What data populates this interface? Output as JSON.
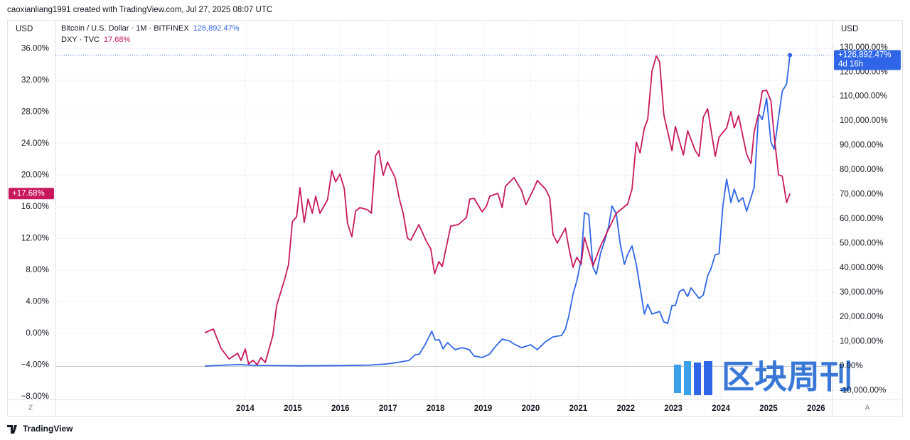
{
  "header": "caoxianliang1991 created with TradingView.com, Jul 27, 2025 08:07 UTC",
  "footer": "TradingView",
  "watermark": "区块周刊",
  "chart_data": {
    "type": "line",
    "currency_left": "USD",
    "currency_right": "USD",
    "left_corner": "Z",
    "right_corner": "A",
    "xlim": [
      2010.01,
      2026.33
    ],
    "xticks": [
      2014,
      2015,
      2016,
      2017,
      2018,
      2019,
      2020,
      2021,
      2022,
      2023,
      2024,
      2025,
      2026
    ],
    "ylim": [
      -8.36,
      39.28
    ],
    "yticks": [
      {
        "value": 36,
        "label": "36.00%"
      },
      {
        "value": 32,
        "label": "32.00%"
      },
      {
        "value": 28,
        "label": "28.00%"
      },
      {
        "value": 24,
        "label": "24.00%"
      },
      {
        "value": 20,
        "label": "20.00%"
      },
      {
        "value": 16,
        "label": "16.00%"
      },
      {
        "value": 12,
        "label": "12.00%"
      },
      {
        "value": 8,
        "label": "8.00%"
      },
      {
        "value": 4,
        "label": "4.00%"
      },
      {
        "value": 0,
        "label": "0.00%"
      },
      {
        "value": -4,
        "label": "−4.00%"
      },
      {
        "value": -8,
        "label": "−8.00%"
      }
    ],
    "y2lim": [
      -13630,
      140080
    ],
    "y2ticks": [
      {
        "value": 130000,
        "label": "130,000.00%"
      },
      {
        "value": 120000,
        "label": "120,000.00%"
      },
      {
        "value": 110000,
        "label": "110,000.00%"
      },
      {
        "value": 100000,
        "label": "100,000.00%"
      },
      {
        "value": 90000,
        "label": "90,000.00%"
      },
      {
        "value": 80000,
        "label": "80,000.00%"
      },
      {
        "value": 70000,
        "label": "70,000.00%"
      },
      {
        "value": 60000,
        "label": "60,000.00%"
      },
      {
        "value": 50000,
        "label": "50,000.00%"
      },
      {
        "value": 40000,
        "label": "40,000.00%"
      },
      {
        "value": 30000,
        "label": "30,000.00%"
      },
      {
        "value": 20000,
        "label": "20,000.00%"
      },
      {
        "value": 10000,
        "label": "10,000.00%"
      },
      {
        "value": 0,
        "label": "0.00%"
      },
      {
        "value": -10000,
        "label": "-10,000.00%"
      }
    ],
    "grid": true,
    "series": [
      {
        "name": "Bitcoin / U.S. Dollar · 1M · BITFINEX",
        "color": "#2f66e8",
        "axis": "y2",
        "legend_value": "126,892.47%",
        "price_label": "+126,892.47%",
        "countdown": "4d 16h",
        "x": [
          2013.15,
          2013.84,
          2014.22,
          2015.12,
          2016.02,
          2016.62,
          2016.99,
          2017.21,
          2017.44,
          2017.57,
          2017.66,
          2017.78,
          2017.92,
          2017.99,
          2018.08,
          2018.16,
          2018.25,
          2018.41,
          2018.56,
          2018.71,
          2018.81,
          2018.98,
          2019.14,
          2019.23,
          2019.4,
          2019.56,
          2019.65,
          2019.81,
          2020.0,
          2020.14,
          2020.31,
          2020.47,
          2020.65,
          2020.73,
          2020.8,
          2020.89,
          2020.97,
          2021.06,
          2021.13,
          2021.22,
          2021.31,
          2021.38,
          2021.47,
          2021.55,
          2021.64,
          2021.71,
          2021.8,
          2021.88,
          2021.97,
          2022.04,
          2022.13,
          2022.22,
          2022.39,
          2022.46,
          2022.55,
          2022.71,
          2022.8,
          2022.88,
          2022.97,
          2023.04,
          2023.13,
          2023.21,
          2023.3,
          2023.37,
          2023.54,
          2023.63,
          2023.72,
          2023.79,
          2023.88,
          2023.96,
          2024.04,
          2024.12,
          2024.21,
          2024.28,
          2024.37,
          2024.46,
          2024.54,
          2024.63,
          2024.7,
          2024.79,
          2024.87,
          2024.96,
          2025.05,
          2025.12,
          2025.21,
          2025.29,
          2025.38,
          2025.45
        ],
        "values": [
          0,
          600,
          300,
          100,
          200,
          400,
          900,
          1500,
          2300,
          4600,
          4900,
          8700,
          14200,
          10700,
          10700,
          7000,
          9600,
          6700,
          7500,
          6700,
          4100,
          3500,
          4900,
          7300,
          11000,
          10200,
          9000,
          7500,
          8700,
          6700,
          9900,
          11900,
          12500,
          15100,
          20300,
          29300,
          34800,
          43200,
          62600,
          61800,
          40300,
          37400,
          46100,
          50800,
          57100,
          65300,
          62100,
          50200,
          41500,
          45500,
          49000,
          41500,
          21200,
          25200,
          21200,
          22300,
          18000,
          17400,
          24700,
          24700,
          30500,
          31300,
          28400,
          31900,
          27600,
          29000,
          36800,
          39700,
          45500,
          45800,
          65300,
          76300,
          66700,
          72200,
          67000,
          68700,
          63200,
          68700,
          73100,
          103000,
          100600,
          109300,
          91400,
          88500,
          101500,
          112200,
          115100,
          126892.47
        ]
      },
      {
        "name": "DXY · TVC",
        "color": "#c8185d",
        "legend_value": "17.68%",
        "price_label": "+17.68%",
        "x": [
          2013.15,
          2013.33,
          2013.49,
          2013.66,
          2013.84,
          2013.91,
          2014.0,
          2014.07,
          2014.16,
          2014.25,
          2014.33,
          2014.42,
          2014.58,
          2014.66,
          2014.82,
          2014.91,
          2014.99,
          2015.08,
          2015.15,
          2015.24,
          2015.32,
          2015.41,
          2015.48,
          2015.57,
          2015.73,
          2015.82,
          2015.9,
          2015.99,
          2016.08,
          2016.15,
          2016.24,
          2016.32,
          2016.41,
          2016.57,
          2016.65,
          2016.74,
          2016.81,
          2016.9,
          2016.99,
          2017.15,
          2017.24,
          2017.32,
          2017.41,
          2017.48,
          2017.65,
          2017.81,
          2017.9,
          2017.98,
          2018.07,
          2018.14,
          2018.32,
          2018.48,
          2018.65,
          2018.72,
          2018.81,
          2018.98,
          2019.07,
          2019.14,
          2019.31,
          2019.4,
          2019.47,
          2019.65,
          2019.81,
          2019.9,
          2020.07,
          2020.14,
          2020.31,
          2020.4,
          2020.47,
          2020.56,
          2020.73,
          2020.8,
          2020.89,
          2020.97,
          2021.06,
          2021.13,
          2021.31,
          2021.47,
          2021.64,
          2021.8,
          2022.04,
          2022.13,
          2022.22,
          2022.3,
          2022.39,
          2022.46,
          2022.55,
          2022.64,
          2022.71,
          2022.8,
          2022.97,
          2023.04,
          2023.21,
          2023.3,
          2023.46,
          2023.54,
          2023.63,
          2023.72,
          2023.88,
          2023.96,
          2024.12,
          2024.21,
          2024.28,
          2024.37,
          2024.54,
          2024.63,
          2024.7,
          2024.79,
          2024.87,
          2024.96,
          2025.05,
          2025.12,
          2025.21,
          2025.29,
          2025.38,
          2025.45
        ],
        "values": [
          0.09,
          0.54,
          -1.89,
          -3.24,
          -2.52,
          -3.42,
          -1.98,
          -3.87,
          -3.42,
          -3.96,
          -3.06,
          -3.69,
          -0.27,
          3.51,
          6.65,
          8.72,
          14.11,
          14.74,
          18.43,
          14.02,
          16.99,
          15.19,
          17.35,
          15.19,
          16.9,
          20.58,
          19.15,
          20.13,
          18.34,
          13.93,
          12.22,
          15.46,
          15.91,
          15.64,
          15.19,
          22.47,
          23.1,
          19.96,
          21.66,
          19.69,
          16.99,
          15.19,
          12.04,
          11.78,
          13.75,
          11.6,
          10.7,
          7.55,
          9.08,
          8.45,
          13.57,
          13.75,
          14.65,
          16.99,
          17.08,
          15.37,
          16.09,
          17.35,
          17.71,
          15.91,
          18.61,
          19.69,
          18.07,
          16.27,
          18.34,
          19.33,
          18.25,
          17.17,
          12.49,
          11.42,
          13.3,
          10.88,
          8.36,
          9.62,
          8.72,
          12.13,
          8.54,
          11.06,
          13.21,
          15.19,
          16.36,
          18.25,
          24.18,
          22.83,
          25.98,
          27.06,
          33.17,
          35.06,
          34.34,
          27.6,
          23.1,
          26.16,
          22.56,
          25.62,
          23.1,
          22.38,
          27.33,
          28.4,
          22.38,
          24.81,
          25.98,
          28.04,
          25.98,
          27.51,
          22.65,
          21.48,
          25.53,
          27.78,
          30.65,
          30.74,
          29.39,
          24.9,
          20.04,
          19.87,
          16.54,
          17.68
        ]
      }
    ]
  }
}
